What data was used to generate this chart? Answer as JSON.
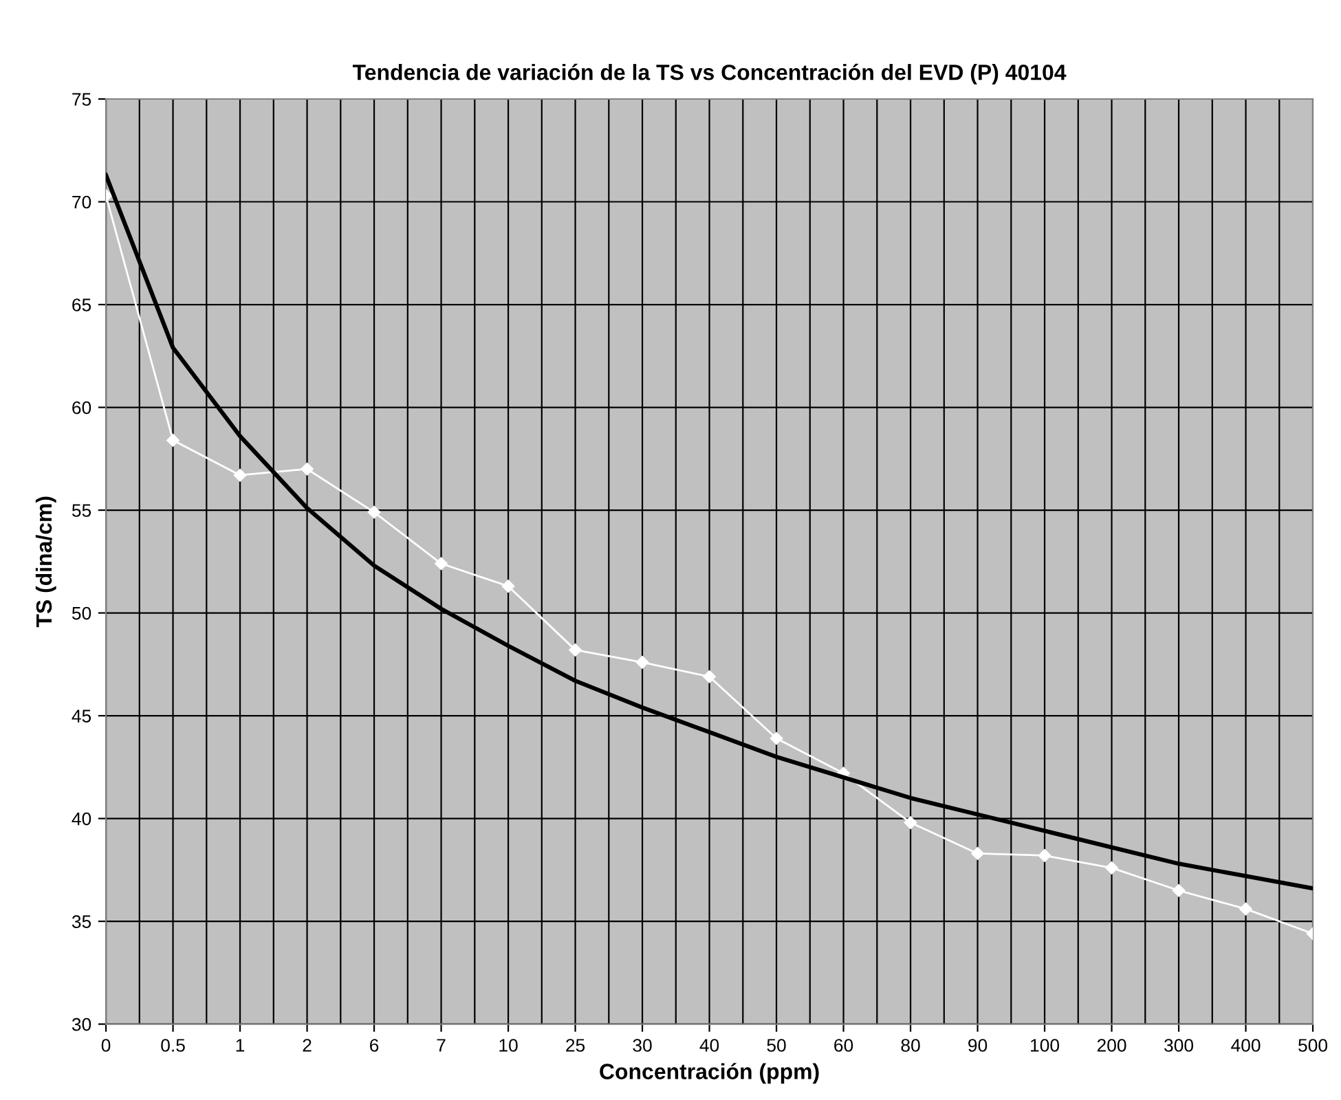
{
  "chart_data": {
    "type": "line",
    "title": "Tendencia de variación de la TS vs Concentración del EVD (P) 40104",
    "xlabel": "Concentración (ppm)",
    "ylabel": "TS (dina/cm)",
    "categories": [
      "0",
      "0.5",
      "1",
      "2",
      "6",
      "7",
      "10",
      "25",
      "30",
      "40",
      "50",
      "60",
      "80",
      "90",
      "100",
      "200",
      "300",
      "400",
      "500"
    ],
    "series": [
      {
        "color": "#ffffff",
        "marker": "diamond",
        "values": [
          70.3,
          58.4,
          56.7,
          57.0,
          54.9,
          52.4,
          51.3,
          48.2,
          47.6,
          46.9,
          43.9,
          42.2,
          39.8,
          38.3,
          38.2,
          37.6,
          36.5,
          35.6,
          34.4
        ]
      },
      {
        "color": "#000000",
        "marker": "none",
        "values": [
          71.3,
          62.9,
          58.6,
          55.1,
          52.3,
          50.2,
          48.4,
          46.7,
          45.4,
          44.2,
          43.0,
          42.0,
          41.0,
          40.2,
          39.4,
          38.6,
          37.8,
          37.2,
          36.6
        ]
      }
    ],
    "ylim": [
      30,
      75
    ],
    "yticks": [
      30,
      35,
      40,
      45,
      50,
      55,
      60,
      65,
      70,
      75
    ],
    "grid": true,
    "line_style": "solid"
  }
}
